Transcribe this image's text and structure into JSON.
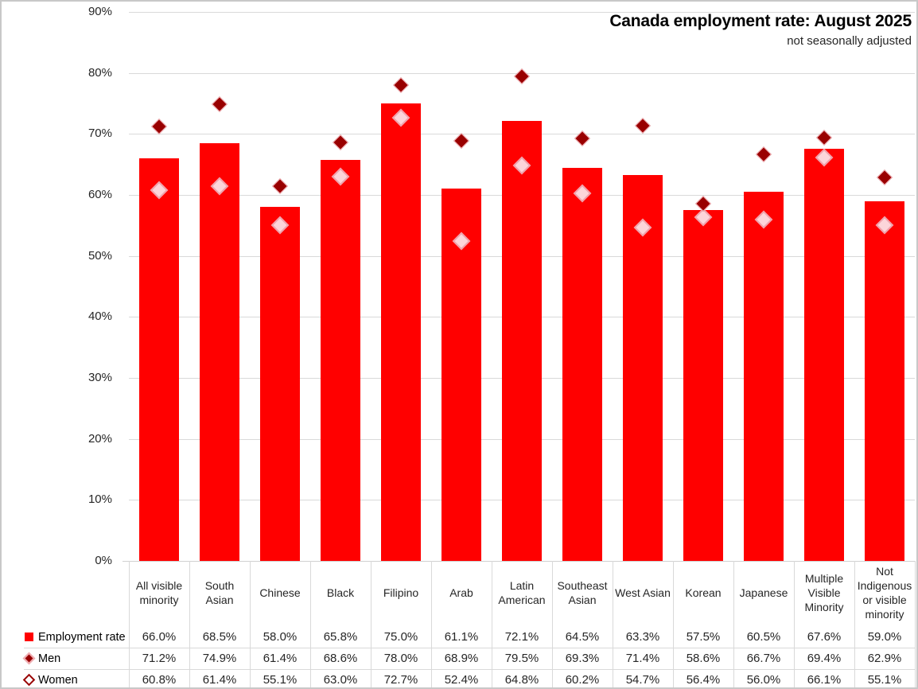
{
  "title": "Canada employment rate: August 2025",
  "subtitle": "not seasonally adjusted",
  "chart_data": {
    "type": "bar",
    "title": "Canada employment rate: August 2025",
    "subtitle": "not seasonally adjusted",
    "categories": [
      "All visible minority",
      "South Asian",
      "Chinese",
      "Black",
      "Filipino",
      "Arab",
      "Latin American",
      "Southeast Asian",
      "West Asian",
      "Korean",
      "Japanese",
      "Multiple Visible Minority",
      "Not Indigenous or visible minority"
    ],
    "series": [
      {
        "name": "Employment rate",
        "render": "bar",
        "marker": "red-square",
        "values": [
          66.0,
          68.5,
          58.0,
          65.8,
          75.0,
          61.1,
          72.1,
          64.5,
          63.3,
          57.5,
          60.5,
          67.6,
          59.0
        ]
      },
      {
        "name": "Men",
        "render": "scatter-diamond",
        "marker": "dark-red-filled-diamond",
        "values": [
          71.2,
          74.9,
          61.4,
          68.6,
          78.0,
          68.9,
          79.5,
          69.3,
          71.4,
          58.6,
          66.7,
          69.4,
          62.9
        ]
      },
      {
        "name": "Women",
        "render": "scatter-diamond",
        "marker": "pink-filled-diamond-outline",
        "values": [
          60.8,
          61.4,
          55.1,
          63.0,
          72.7,
          52.4,
          64.8,
          60.2,
          54.7,
          56.4,
          56.0,
          66.1,
          55.1
        ]
      }
    ],
    "ylim": [
      0,
      90
    ],
    "yticks": [
      0,
      10,
      20,
      30,
      40,
      50,
      60,
      70,
      80,
      90
    ],
    "ytick_labels": [
      "0%",
      "10%",
      "20%",
      "30%",
      "40%",
      "50%",
      "60%",
      "70%",
      "80%",
      "90%"
    ],
    "value_format": "0.0%",
    "grid": true,
    "legend_position": "data-table-left"
  },
  "colors": {
    "bar": "#ff0000",
    "men_marker_fill": "#990000",
    "men_marker_border": "#f2afb4",
    "women_marker_fill": "#fcd5da",
    "women_marker_border": "#f0a3ad",
    "legend_women_border": "#990000",
    "legend_women_fill": "#ffffff",
    "gridline": "#d9d9d9",
    "text": "#262626"
  }
}
